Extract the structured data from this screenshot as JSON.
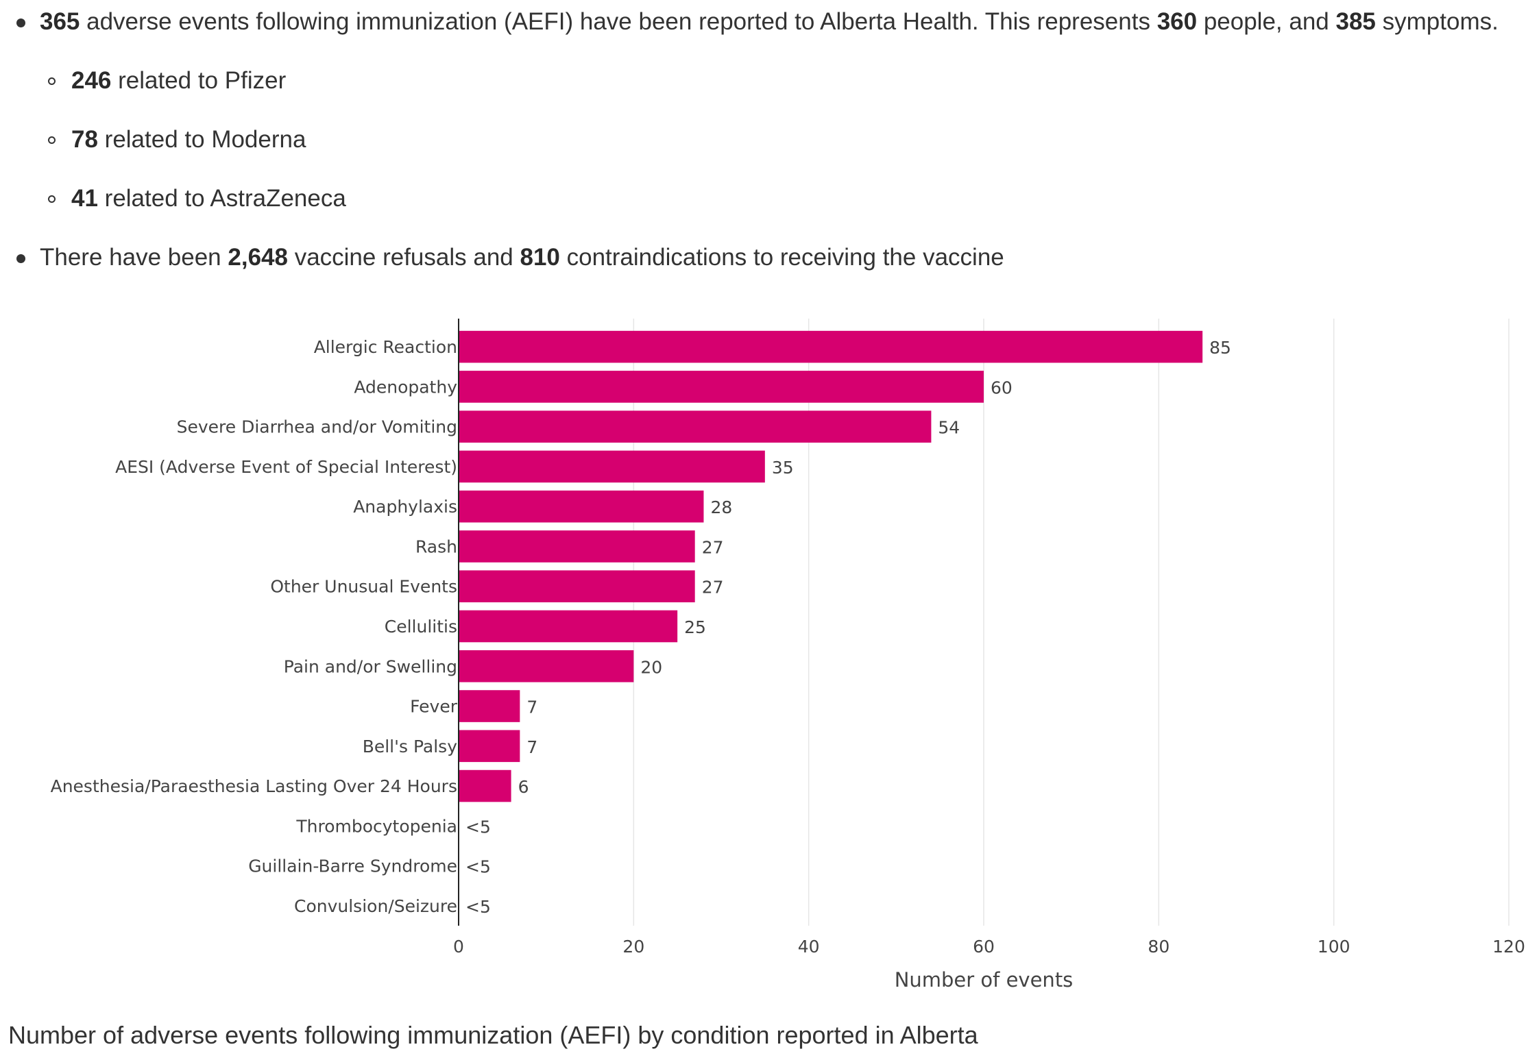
{
  "summary": {
    "aefi_count": "365",
    "aefi_text": " adverse events following immunization (AEFI) have been reported to Alberta Health. This represents ",
    "people_count": "360",
    "people_text": " people, and ",
    "symptoms_count": "385",
    "symptoms_text": " symptoms.",
    "vaccines": [
      {
        "count": "246",
        "text": " related to Pfizer"
      },
      {
        "count": "78",
        "text": " related to Moderna"
      },
      {
        "count": "41",
        "text": " related to AstraZeneca"
      }
    ],
    "refusals_prefix": "There have been ",
    "refusals_count": "2,648",
    "refusals_text": " vaccine refusals and ",
    "contra_count": "810",
    "contra_text": " contraindications to receiving the vaccine"
  },
  "chart_data": {
    "type": "bar",
    "orientation": "horizontal",
    "categories": [
      "Allergic Reaction",
      "Adenopathy",
      "Severe Diarrhea and/or Vomiting",
      "AESI (Adverse Event of Special Interest)",
      "Anaphylaxis",
      "Rash",
      "Other Unusual Events",
      "Cellulitis",
      "Pain and/or Swelling",
      "Fever",
      "Bell's Palsy",
      "Anesthesia/Paraesthesia Lasting Over 24 Hours",
      "Thrombocytopenia",
      "Guillain-Barre Syndrome",
      "Convulsion/Seizure"
    ],
    "values": [
      85,
      60,
      54,
      35,
      28,
      27,
      27,
      25,
      20,
      7,
      7,
      6,
      0,
      0,
      0
    ],
    "data_labels": [
      "85",
      "60",
      "54",
      "35",
      "28",
      "27",
      "27",
      "25",
      "20",
      "7",
      "7",
      "6",
      "<5",
      "<5",
      "<5"
    ],
    "xlabel": "Number of events",
    "ylabel": "",
    "xlim": [
      0,
      120
    ],
    "xticks": [
      0,
      20,
      40,
      60,
      80,
      100,
      120
    ],
    "grid": true,
    "bar_color": "#d6006f"
  },
  "caption": "Number of adverse events following immunization (AEFI) by condition reported in Alberta"
}
